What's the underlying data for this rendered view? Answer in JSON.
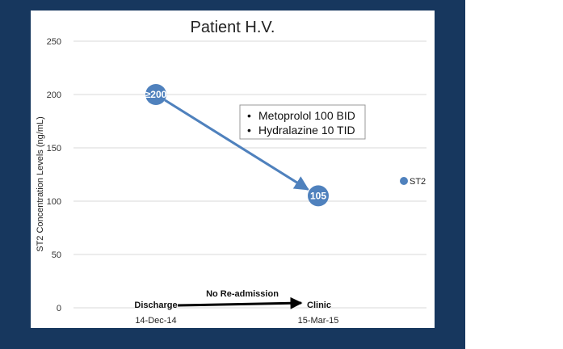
{
  "chart_data": {
    "type": "line",
    "title": "Patient H.V.",
    "ylabel": "ST2 Concentration Levels (ng/mL)",
    "ylim": [
      0,
      250
    ],
    "y_ticks": [
      0,
      50,
      100,
      150,
      200,
      250
    ],
    "grid": true,
    "legend": "right",
    "series": [
      {
        "name": "ST2",
        "color": "#4f81bd",
        "points": [
          {
            "x": "14-Dec-14",
            "y": 200,
            "label": "≥200"
          },
          {
            "x": "15-Mar-15",
            "y": 105,
            "label": "105"
          }
        ]
      }
    ],
    "x_dates": [
      "14-Dec-14",
      "15-Mar-15"
    ],
    "annotation_box": [
      "Metoprolol 100 BID",
      "Hydralazine 10 TID"
    ],
    "timeline": {
      "start_label": "Discharge",
      "middle_label": "No Re-admission",
      "end_label": "Clinic"
    }
  }
}
